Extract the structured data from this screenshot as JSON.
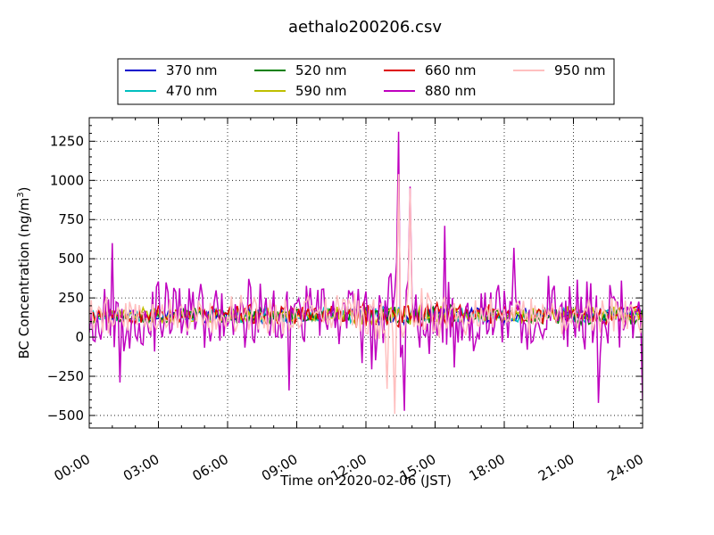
{
  "chart_data": {
    "type": "line",
    "title": "aethalo200206.csv",
    "xlabel": "Time on 2020-02-06 (JST)",
    "ylabel_main": "BC Concentration (ng/m",
    "ylabel_sup": "3",
    "ylabel_tail": ")",
    "xlim_hours": [
      0,
      24
    ],
    "ylim": [
      -580,
      1400
    ],
    "grid": true,
    "legend_placement": "top-center",
    "x_tick_hours": [
      0,
      3,
      6,
      9,
      12,
      15,
      18,
      21,
      24
    ],
    "x_tick_labels": [
      "00:00",
      "03:00",
      "06:00",
      "09:00",
      "12:00",
      "15:00",
      "18:00",
      "21:00",
      "24:00"
    ],
    "y_ticks": [
      -500,
      -250,
      0,
      250,
      500,
      750,
      1000,
      1250
    ],
    "y_tick_labels": [
      "−500",
      "−250",
      "0",
      "250",
      "500",
      "750",
      "1000",
      "1250"
    ],
    "sample_interval_minutes": 5,
    "series": [
      {
        "name": "370 nm",
        "color": "#0000cc",
        "base": 140,
        "amp": 40,
        "seed": 11
      },
      {
        "name": "470 nm",
        "color": "#00bfbf",
        "base": 140,
        "amp": 40,
        "seed": 23
      },
      {
        "name": "520 nm",
        "color": "#007f00",
        "base": 135,
        "amp": 45,
        "seed": 37
      },
      {
        "name": "590 nm",
        "color": "#bfbf00",
        "base": 140,
        "amp": 45,
        "seed": 41
      },
      {
        "name": "660 nm",
        "color": "#dd0000",
        "base": 145,
        "amp": 55,
        "seed": 53
      },
      {
        "name": "880 nm",
        "color": "#bf00bf",
        "base": 140,
        "amp": 200,
        "seed": 67,
        "peaks": [
          [
            13.4,
            1310
          ],
          [
            13.9,
            960
          ],
          [
            13.7,
            -470
          ],
          [
            15.4,
            710
          ],
          [
            18.4,
            570
          ],
          [
            1.0,
            600
          ],
          [
            22.1,
            -420
          ],
          [
            24.0,
            -400
          ],
          [
            8.7,
            -340
          ],
          [
            1.3,
            -290
          ]
        ]
      },
      {
        "name": "950 nm",
        "color": "#ffbfbf",
        "base": 140,
        "amp": 110,
        "seed": 79,
        "peaks": [
          [
            13.45,
            1040
          ],
          [
            13.95,
            950
          ],
          [
            13.25,
            -490
          ],
          [
            12.9,
            -330
          ]
        ]
      }
    ]
  }
}
